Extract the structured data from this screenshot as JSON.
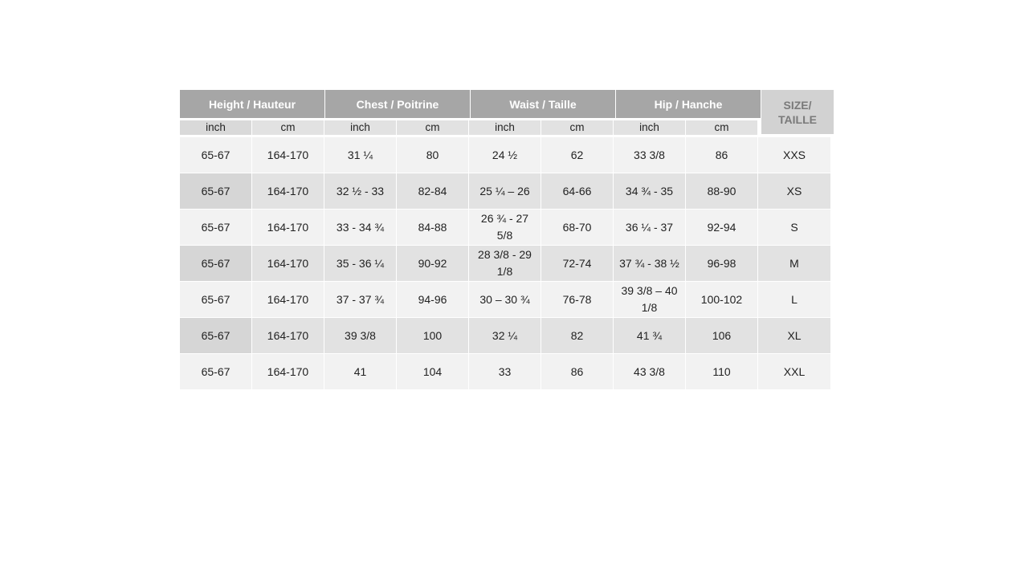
{
  "groups": [
    "Height / Hauteur",
    "Chest / Poitrine",
    "Waist / Taille",
    "Hip / Hanche"
  ],
  "size_header": "SIZE/\nTAILLE",
  "units": [
    "inch",
    "cm",
    "inch",
    "cm",
    "inch",
    "cm",
    "inch",
    "cm"
  ],
  "rows": [
    [
      "65-67",
      "164-170",
      "31 ¼",
      "80",
      "24 ½",
      "62",
      "33 3/8",
      "86",
      "XXS"
    ],
    [
      "65-67",
      "164-170",
      "32 ½ - 33",
      "82-84",
      "25 ¼ – 26",
      "64-66",
      "34 ¾  - 35",
      "88-90",
      "XS"
    ],
    [
      "65-67",
      "164-170",
      "33 - 34 ¾",
      "84-88",
      "26 ¾  - 27 5/8",
      "68-70",
      "36 ¼  - 37",
      "92-94",
      "S"
    ],
    [
      "65-67",
      "164-170",
      "35 - 36 ¼",
      "90-92",
      "28 3/8 - 29 1/8",
      "72-74",
      "37 ¾  -  38 ½",
      "96-98",
      "M"
    ],
    [
      "65-67",
      "164-170",
      "37 - 37 ¾",
      "94-96",
      "30 – 30 ¾",
      "76-78",
      "39 3/8 – 40 1/8",
      "100-102",
      "L"
    ],
    [
      "65-67",
      "164-170",
      "39 3/8",
      "100",
      "32 ¼",
      "82",
      "41 ¾",
      "106",
      "XL"
    ],
    [
      "65-67",
      "164-170",
      "41",
      "104",
      "33",
      "86",
      "43 3/8",
      "110",
      "XXL"
    ]
  ]
}
